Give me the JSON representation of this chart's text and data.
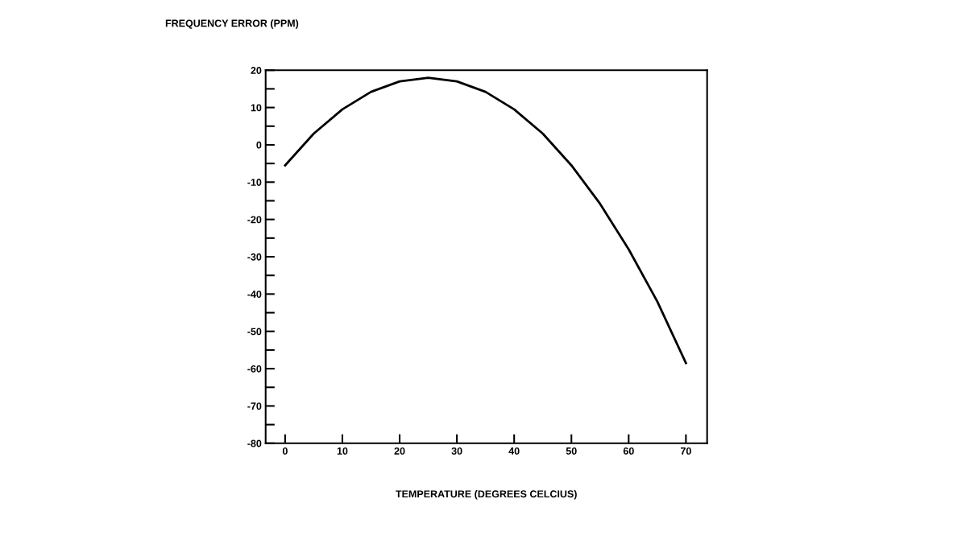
{
  "chart_data": {
    "type": "line",
    "xlabel": "TEMPERATURE (DEGREES CELCIUS)",
    "ylabel": "FREQUENCY ERROR (PPM)",
    "x": [
      0,
      5,
      10,
      15,
      20,
      25,
      30,
      35,
      40,
      45,
      50,
      55,
      60,
      65,
      70
    ],
    "series": [
      {
        "color": "#000000",
        "values": [
          -5.5,
          3,
          9.5,
          14.2,
          17,
          18,
          17,
          14.2,
          9.5,
          3,
          -5.5,
          -15.8,
          -28,
          -42,
          -58.5
        ]
      }
    ],
    "xlim": [
      -3.4,
      73.7
    ],
    "xticks": [
      0,
      10,
      20,
      30,
      40,
      50,
      60,
      70
    ],
    "ylim": [
      -80,
      20
    ],
    "yticks": [
      {
        "value": -80,
        "label": "-80"
      },
      {
        "value": -75,
        "label": null
      },
      {
        "value": -70,
        "label": "-70"
      },
      {
        "value": -65,
        "label": null
      },
      {
        "value": -60,
        "label": "-60"
      },
      {
        "value": -55,
        "label": null
      },
      {
        "value": -50,
        "label": "-50"
      },
      {
        "value": -45,
        "label": null
      },
      {
        "value": -40,
        "label": "-40"
      },
      {
        "value": -35,
        "label": null
      },
      {
        "value": -30,
        "label": "-30"
      },
      {
        "value": -25,
        "label": null
      },
      {
        "value": -20,
        "label": "-20"
      },
      {
        "value": -15,
        "label": null
      },
      {
        "value": -10,
        "label": "-10"
      },
      {
        "value": -5,
        "label": null
      },
      0,
      {
        "value": 5,
        "label": null
      },
      10,
      {
        "value": 15,
        "label": null
      },
      20
    ],
    "grid": false,
    "marker": "none",
    "line_style": "solid"
  }
}
